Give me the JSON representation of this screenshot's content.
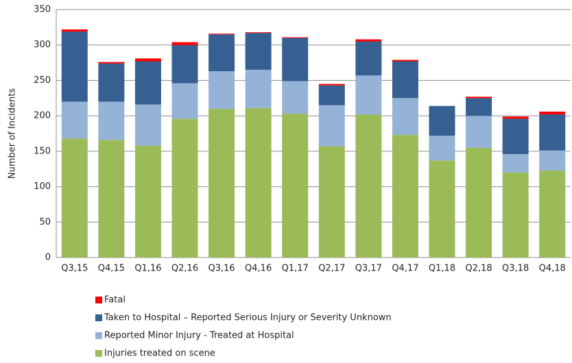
{
  "chart_data": {
    "type": "stacked_bar",
    "y_label": "Number of Incidents",
    "categories": [
      "Q3,15",
      "Q4,15",
      "Q1,16",
      "Q2,16",
      "Q3,16",
      "Q4,16",
      "Q1,17",
      "Q2,17",
      "Q3,17",
      "Q4,17",
      "Q1,18",
      "Q2,18",
      "Q3,18",
      "Q4,18"
    ],
    "series": [
      {
        "name": "Injuries treated on scene",
        "color": "#9bbb59",
        "values": [
          168,
          166,
          158,
          196,
          210,
          211,
          203,
          157,
          202,
          173,
          137,
          155,
          120,
          123
        ]
      },
      {
        "name": "Reported Minor Injury - Treated at Hospital",
        "color": "#95b3d7",
        "values": [
          52,
          54,
          58,
          50,
          53,
          54,
          46,
          58,
          55,
          52,
          35,
          45,
          26,
          28
        ]
      },
      {
        "name": "Taken to Hospital – Reported Serious Injury or Severity Unknown",
        "color": "#366092",
        "values": [
          99,
          54,
          61,
          54,
          52,
          52,
          61,
          28,
          48,
          52,
          42,
          25,
          50,
          51
        ]
      },
      {
        "name": "Fatal",
        "color": "#ff0000",
        "values": [
          3,
          2,
          4,
          4,
          1,
          1,
          1,
          2,
          3,
          2,
          0,
          2,
          3,
          4
        ]
      }
    ],
    "ylim": [
      0,
      350
    ],
    "yticks": [
      0,
      50,
      100,
      150,
      200,
      250,
      300,
      350
    ],
    "grid": true
  }
}
